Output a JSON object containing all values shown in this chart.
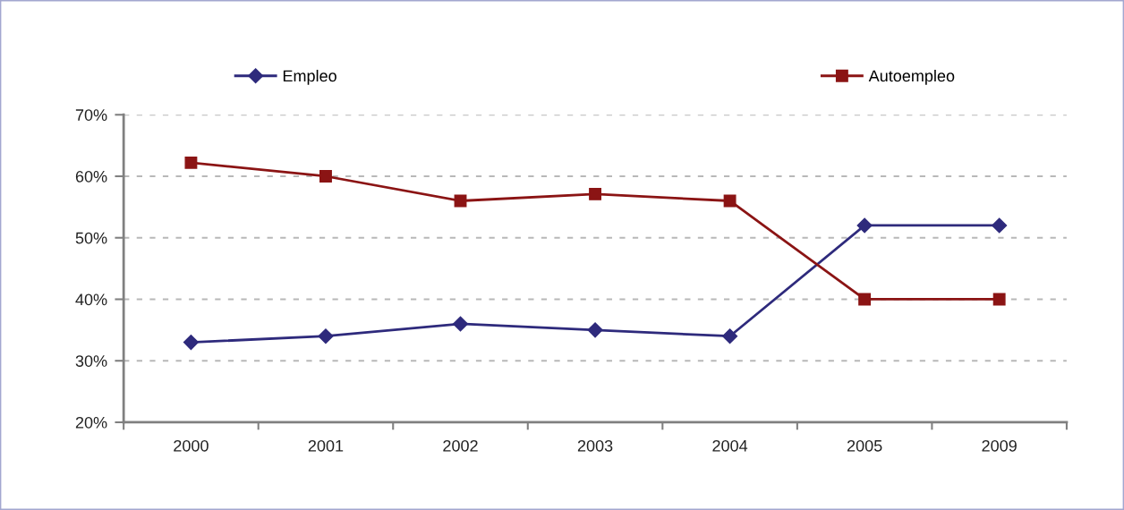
{
  "chart_data": {
    "type": "line",
    "categories": [
      "2000",
      "2001",
      "2002",
      "2003",
      "2004",
      "2005",
      "2009"
    ],
    "series": [
      {
        "name": "Empleo",
        "color": "#2e2a7c",
        "marker": "diamond",
        "values": [
          33,
          34,
          36,
          35,
          34,
          52,
          52
        ]
      },
      {
        "name": "Autoempleo",
        "color": "#8b1414",
        "marker": "square",
        "values": [
          62.2,
          60,
          56,
          57.1,
          56,
          40,
          40
        ]
      }
    ],
    "ylim": [
      20,
      70
    ],
    "yticks": [
      {
        "value": 20,
        "label": "20%"
      },
      {
        "value": 30,
        "label": "30%"
      },
      {
        "value": 40,
        "label": "40%"
      },
      {
        "value": 50,
        "label": "50%"
      },
      {
        "value": 60,
        "label": "60%"
      },
      {
        "value": 70,
        "label": "70%"
      }
    ],
    "grid": "y",
    "legend": "top",
    "line_style": "solid"
  }
}
